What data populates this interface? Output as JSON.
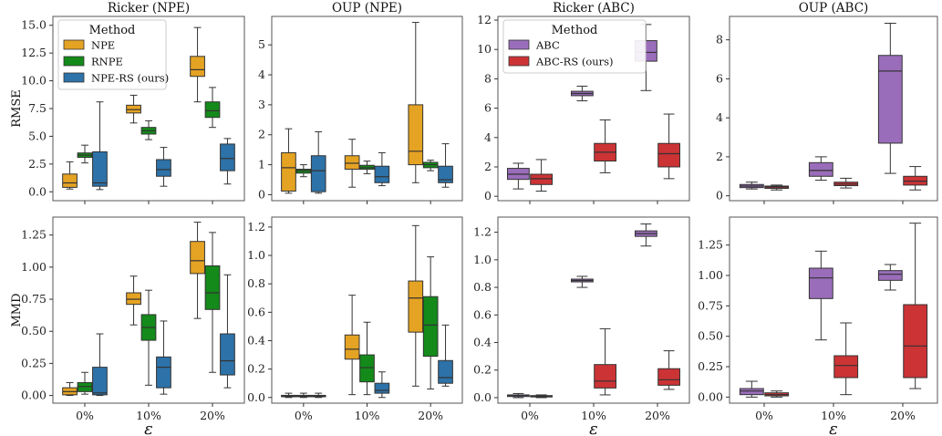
{
  "chart_data": [
    {
      "type": "box",
      "title": "Ricker (NPE)",
      "ylabel": "RMSE",
      "xlabel": "",
      "ylim": [
        -0.8,
        15.8
      ],
      "yticks": [
        0.0,
        2.5,
        5.0,
        7.5,
        10.0,
        12.5,
        15.0
      ],
      "ytick_labels": [
        "0.0",
        "2.5",
        "5.0",
        "7.5",
        "10.0",
        "12.5",
        "15.0"
      ],
      "categories": [
        "0%",
        "10%",
        "20%"
      ],
      "show_xticklabels": false,
      "legend": {
        "title": "Method",
        "placement": "upper-left",
        "entries": [
          "NPE",
          "RNPE",
          "NPE-RS (ours)"
        ]
      },
      "series": [
        {
          "name": "NPE",
          "color": "#E5A323",
          "boxes": [
            [
              0.25,
              0.4,
              0.8,
              1.6,
              2.7
            ],
            [
              6.2,
              7.1,
              7.4,
              7.8,
              8.7
            ],
            [
              8.1,
              10.4,
              11.0,
              12.2,
              14.8
            ]
          ]
        },
        {
          "name": "RNPE",
          "color": "#138A1A",
          "boxes": [
            [
              2.6,
              3.1,
              3.3,
              3.5,
              4.2
            ],
            [
              4.7,
              5.2,
              5.5,
              5.8,
              6.4
            ],
            [
              5.8,
              6.7,
              7.3,
              8.1,
              9.4
            ]
          ]
        },
        {
          "name": "NPE-RS (ours)",
          "color": "#2D72A8",
          "boxes": [
            [
              0.2,
              0.5,
              0.8,
              3.6,
              8.1
            ],
            [
              0.5,
              1.4,
              2.0,
              2.9,
              4.0
            ],
            [
              0.7,
              1.9,
              3.0,
              4.3,
              4.8
            ]
          ]
        }
      ]
    },
    {
      "type": "box",
      "title": "OUP (NPE)",
      "ylabel": "",
      "xlabel": "",
      "ylim": [
        -0.2,
        5.95
      ],
      "yticks": [
        0,
        1,
        2,
        3,
        4,
        5
      ],
      "ytick_labels": [
        "0",
        "1",
        "2",
        "3",
        "4",
        "5"
      ],
      "categories": [
        "0%",
        "10%",
        "20%"
      ],
      "show_xticklabels": false,
      "series": [
        {
          "name": "NPE",
          "color": "#E5A323",
          "boxes": [
            [
              0.05,
              0.12,
              0.9,
              1.4,
              2.2
            ],
            [
              0.25,
              0.85,
              1.05,
              1.3,
              1.85
            ],
            [
              0.4,
              1.0,
              1.45,
              3.0,
              5.75
            ]
          ]
        },
        {
          "name": "RNPE",
          "color": "#138A1A",
          "boxes": [
            [
              0.6,
              0.72,
              0.8,
              0.85,
              1.0
            ],
            [
              0.7,
              0.85,
              0.9,
              0.98,
              1.12
            ],
            [
              0.8,
              0.9,
              1.0,
              1.08,
              1.15
            ]
          ]
        },
        {
          "name": "NPE-RS (ours)",
          "color": "#2D72A8",
          "boxes": [
            [
              0.05,
              0.1,
              0.8,
              1.3,
              2.1
            ],
            [
              0.3,
              0.4,
              0.6,
              0.95,
              1.4
            ],
            [
              0.25,
              0.4,
              0.5,
              0.95,
              1.7
            ]
          ]
        }
      ]
    },
    {
      "type": "box",
      "title": "Ricker (ABC)",
      "ylabel": "",
      "xlabel": "",
      "ylim": [
        -0.3,
        12.25
      ],
      "yticks": [
        0,
        2,
        4,
        6,
        8,
        10,
        12
      ],
      "ytick_labels": [
        "0",
        "2",
        "4",
        "6",
        "8",
        "10",
        "12"
      ],
      "categories": [
        "0%",
        "10%",
        "20%"
      ],
      "show_xticklabels": false,
      "legend": {
        "title": "Method",
        "placement": "upper-left",
        "entries": [
          "ABC",
          "ABC-RS (ours)"
        ]
      },
      "series": [
        {
          "name": "ABC",
          "color": "#9A6DBA",
          "boxes": [
            [
              0.5,
              1.15,
              1.5,
              1.9,
              2.25
            ],
            [
              6.5,
              6.85,
              7.0,
              7.15,
              7.5
            ],
            [
              7.2,
              9.2,
              9.8,
              10.6,
              11.7
            ]
          ]
        },
        {
          "name": "ABC-RS (ours)",
          "color": "#CC3335",
          "boxes": [
            [
              0.35,
              0.8,
              1.2,
              1.5,
              2.5
            ],
            [
              1.6,
              2.4,
              3.0,
              3.6,
              5.2
            ],
            [
              1.2,
              2.0,
              2.9,
              3.6,
              5.6
            ]
          ]
        }
      ]
    },
    {
      "type": "box",
      "title": "OUP (ABC)",
      "ylabel": "",
      "xlabel": "",
      "ylim": [
        -0.25,
        9.2
      ],
      "yticks": [
        0,
        2,
        4,
        6,
        8
      ],
      "ytick_labels": [
        "0",
        "2",
        "4",
        "6",
        "8"
      ],
      "categories": [
        "0%",
        "10%",
        "20%"
      ],
      "show_xticklabels": false,
      "series": [
        {
          "name": "ABC",
          "color": "#9A6DBA",
          "boxes": [
            [
              0.35,
              0.42,
              0.5,
              0.58,
              0.7
            ],
            [
              0.8,
              1.0,
              1.3,
              1.7,
              2.0
            ],
            [
              1.15,
              2.7,
              6.4,
              7.2,
              8.85
            ]
          ]
        },
        {
          "name": "ABC-RS (ours)",
          "color": "#CC3335",
          "boxes": [
            [
              0.3,
              0.38,
              0.45,
              0.5,
              0.55
            ],
            [
              0.4,
              0.52,
              0.6,
              0.7,
              0.9
            ],
            [
              0.3,
              0.55,
              0.75,
              1.0,
              1.5
            ]
          ]
        }
      ]
    },
    {
      "type": "box",
      "title": "",
      "ylabel": "MMD",
      "xlabel": "ε",
      "ylim": [
        -0.06,
        1.39
      ],
      "yticks": [
        0.0,
        0.25,
        0.5,
        0.75,
        1.0,
        1.25
      ],
      "ytick_labels": [
        "0.00",
        "0.25",
        "0.50",
        "0.75",
        "1.00",
        "1.25"
      ],
      "categories": [
        "0%",
        "10%",
        "20%"
      ],
      "show_xticklabels": true,
      "series": [
        {
          "name": "NPE",
          "color": "#E5A323",
          "boxes": [
            [
              0.0,
              0.005,
              0.03,
              0.06,
              0.1
            ],
            [
              0.55,
              0.71,
              0.75,
              0.8,
              0.93
            ],
            [
              0.6,
              0.95,
              1.05,
              1.2,
              1.35
            ]
          ]
        },
        {
          "name": "RNPE",
          "color": "#138A1A",
          "boxes": [
            [
              0.01,
              0.03,
              0.07,
              0.1,
              0.18
            ],
            [
              0.08,
              0.43,
              0.53,
              0.63,
              0.82
            ],
            [
              0.18,
              0.67,
              0.8,
              1.01,
              1.27
            ]
          ]
        },
        {
          "name": "NPE-RS (ours)",
          "color": "#2D72A8",
          "boxes": [
            [
              0.0,
              0.005,
              0.02,
              0.22,
              0.48
            ],
            [
              0.01,
              0.06,
              0.22,
              0.3,
              0.58
            ],
            [
              0.06,
              0.16,
              0.27,
              0.48,
              0.94
            ]
          ]
        }
      ]
    },
    {
      "type": "box",
      "title": "",
      "ylabel": "",
      "xlabel": "",
      "ylim": [
        -0.04,
        1.27
      ],
      "yticks": [
        0.0,
        0.2,
        0.4,
        0.6,
        0.8,
        1.0,
        1.2
      ],
      "ytick_labels": [
        "0.0",
        "0.2",
        "0.4",
        "0.6",
        "0.8",
        "1.0",
        "1.2"
      ],
      "categories": [
        "0%",
        "10%",
        "20%"
      ],
      "show_xticklabels": true,
      "series": [
        {
          "name": "NPE",
          "color": "#E5A323",
          "boxes": [
            [
              0.0,
              0.005,
              0.01,
              0.015,
              0.03
            ],
            [
              0.02,
              0.27,
              0.34,
              0.44,
              0.72
            ],
            [
              0.08,
              0.46,
              0.7,
              0.82,
              1.21
            ]
          ]
        },
        {
          "name": "RNPE",
          "color": "#138A1A",
          "boxes": [
            [
              0.0,
              0.005,
              0.01,
              0.015,
              0.03
            ],
            [
              0.02,
              0.11,
              0.21,
              0.3,
              0.53
            ],
            [
              0.06,
              0.29,
              0.51,
              0.71,
              0.99
            ]
          ]
        },
        {
          "name": "NPE-RS (ours)",
          "color": "#2D72A8",
          "boxes": [
            [
              0.0,
              0.005,
              0.01,
              0.015,
              0.03
            ],
            [
              0.0,
              0.03,
              0.05,
              0.1,
              0.18
            ],
            [
              0.08,
              0.1,
              0.14,
              0.26,
              0.51
            ]
          ]
        }
      ]
    },
    {
      "type": "box",
      "title": "",
      "ylabel": "",
      "xlabel": "ε",
      "ylim": [
        -0.04,
        1.31
      ],
      "yticks": [
        0.0,
        0.2,
        0.4,
        0.6,
        0.8,
        1.0,
        1.2
      ],
      "ytick_labels": [
        "0.0",
        "0.2",
        "0.4",
        "0.6",
        "0.8",
        "1.0",
        "1.2"
      ],
      "categories": [
        "0%",
        "10%",
        "20%"
      ],
      "show_xticklabels": true,
      "series": [
        {
          "name": "ABC",
          "color": "#9A6DBA",
          "boxes": [
            [
              0.0,
              0.008,
              0.015,
              0.02,
              0.03
            ],
            [
              0.8,
              0.84,
              0.85,
              0.86,
              0.88
            ],
            [
              1.1,
              1.17,
              1.19,
              1.21,
              1.26
            ]
          ]
        },
        {
          "name": "ABC-RS (ours)",
          "color": "#CC3335",
          "boxes": [
            [
              0.0,
              0.005,
              0.01,
              0.015,
              0.02
            ],
            [
              0.02,
              0.07,
              0.12,
              0.24,
              0.5
            ],
            [
              0.06,
              0.09,
              0.13,
              0.21,
              0.34
            ]
          ]
        }
      ]
    },
    {
      "type": "box",
      "title": "",
      "ylabel": "",
      "xlabel": "ε",
      "ylim": [
        -0.05,
        1.48
      ],
      "yticks": [
        0.0,
        0.25,
        0.5,
        0.75,
        1.0,
        1.25
      ],
      "ytick_labels": [
        "0.00",
        "0.25",
        "0.50",
        "0.75",
        "1.00",
        "1.25"
      ],
      "categories": [
        "0%",
        "10%",
        "20%"
      ],
      "show_xticklabels": true,
      "series": [
        {
          "name": "ABC",
          "color": "#9A6DBA",
          "boxes": [
            [
              0.0,
              0.02,
              0.05,
              0.07,
              0.13
            ],
            [
              0.47,
              0.81,
              0.98,
              1.06,
              1.2
            ],
            [
              0.88,
              0.96,
              1.01,
              1.04,
              1.09
            ]
          ]
        },
        {
          "name": "ABC-RS (ours)",
          "color": "#CC3335",
          "boxes": [
            [
              0.0,
              0.01,
              0.02,
              0.035,
              0.05
            ],
            [
              0.02,
              0.16,
              0.26,
              0.34,
              0.61
            ],
            [
              0.07,
              0.16,
              0.42,
              0.76,
              1.43
            ]
          ]
        }
      ]
    }
  ]
}
